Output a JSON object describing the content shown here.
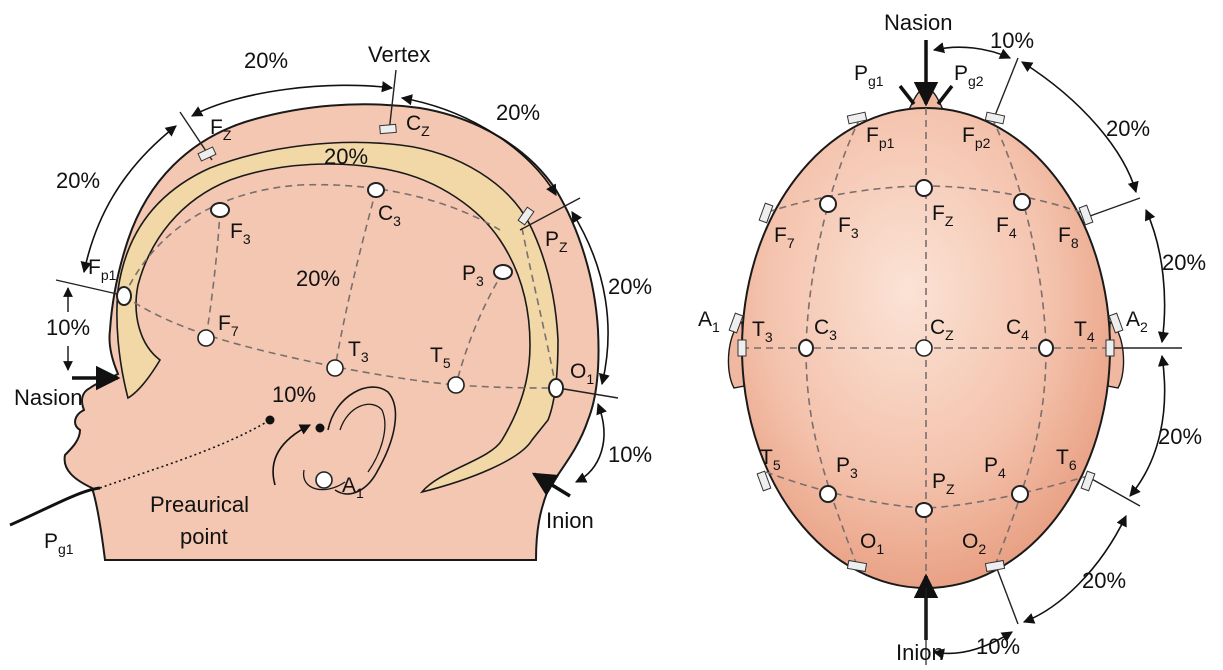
{
  "colors": {
    "skin": "#f4c7b2",
    "skin_dark": "#e8a48a",
    "band": "#f1d8a6",
    "outline": "#1a1a1a",
    "guide": "#7a6f6f"
  },
  "side_view": {
    "labels": {
      "vertex": "Vertex",
      "nasion": "Nasion",
      "inion": "Inion",
      "preaurical_1": "Preaurical",
      "preaurical_2": "point",
      "pg1_main": "P",
      "pg1_sub": "g1"
    },
    "percentages": {
      "top_front": "20%",
      "top_back": "20%",
      "front_left": "20%",
      "band_top": "20%",
      "mid": "20%",
      "back_right": "20%",
      "nasion_10": "10%",
      "inion_10": "10%",
      "ear_10": "10%"
    },
    "electrodes": [
      {
        "id": "Fp1",
        "main": "F",
        "sub": "p1"
      },
      {
        "id": "Fz",
        "main": "F",
        "sub": "Z"
      },
      {
        "id": "Cz",
        "main": "C",
        "sub": "Z"
      },
      {
        "id": "Pz",
        "main": "P",
        "sub": "Z"
      },
      {
        "id": "F3",
        "main": "F",
        "sub": "3"
      },
      {
        "id": "C3",
        "main": "C",
        "sub": "3"
      },
      {
        "id": "P3",
        "main": "P",
        "sub": "3"
      },
      {
        "id": "F7",
        "main": "F",
        "sub": "7"
      },
      {
        "id": "T3",
        "main": "T",
        "sub": "3"
      },
      {
        "id": "T5",
        "main": "T",
        "sub": "5"
      },
      {
        "id": "O1",
        "main": "O",
        "sub": "1"
      },
      {
        "id": "A1",
        "main": "A",
        "sub": "1"
      }
    ]
  },
  "top_view": {
    "labels": {
      "nasion": "Nasion",
      "inion": "Inion"
    },
    "percentages": {
      "top_10": "10%",
      "right_upper": "20%",
      "right_mid": "20%",
      "right_low": "20%",
      "bottom_20": "20%",
      "bottom_10": "10%"
    },
    "electrodes": [
      {
        "id": "Pg1",
        "main": "P",
        "sub": "g1"
      },
      {
        "id": "Pg2",
        "main": "P",
        "sub": "g2"
      },
      {
        "id": "Fp1",
        "main": "F",
        "sub": "p1"
      },
      {
        "id": "Fp2",
        "main": "F",
        "sub": "p2"
      },
      {
        "id": "F7",
        "main": "F",
        "sub": "7"
      },
      {
        "id": "F3",
        "main": "F",
        "sub": "3"
      },
      {
        "id": "Fz",
        "main": "F",
        "sub": "Z"
      },
      {
        "id": "F4",
        "main": "F",
        "sub": "4"
      },
      {
        "id": "F8",
        "main": "F",
        "sub": "8"
      },
      {
        "id": "A1",
        "main": "A",
        "sub": "1"
      },
      {
        "id": "T3",
        "main": "T",
        "sub": "3"
      },
      {
        "id": "C3",
        "main": "C",
        "sub": "3"
      },
      {
        "id": "Cz",
        "main": "C",
        "sub": "Z"
      },
      {
        "id": "C4",
        "main": "C",
        "sub": "4"
      },
      {
        "id": "T4",
        "main": "T",
        "sub": "4"
      },
      {
        "id": "A2",
        "main": "A",
        "sub": "2"
      },
      {
        "id": "T5",
        "main": "T",
        "sub": "5"
      },
      {
        "id": "P3",
        "main": "P",
        "sub": "3"
      },
      {
        "id": "Pz",
        "main": "P",
        "sub": "Z"
      },
      {
        "id": "P4",
        "main": "P",
        "sub": "4"
      },
      {
        "id": "T6",
        "main": "T",
        "sub": "6"
      },
      {
        "id": "O1",
        "main": "O",
        "sub": "1"
      },
      {
        "id": "O2",
        "main": "O",
        "sub": "2"
      }
    ]
  }
}
